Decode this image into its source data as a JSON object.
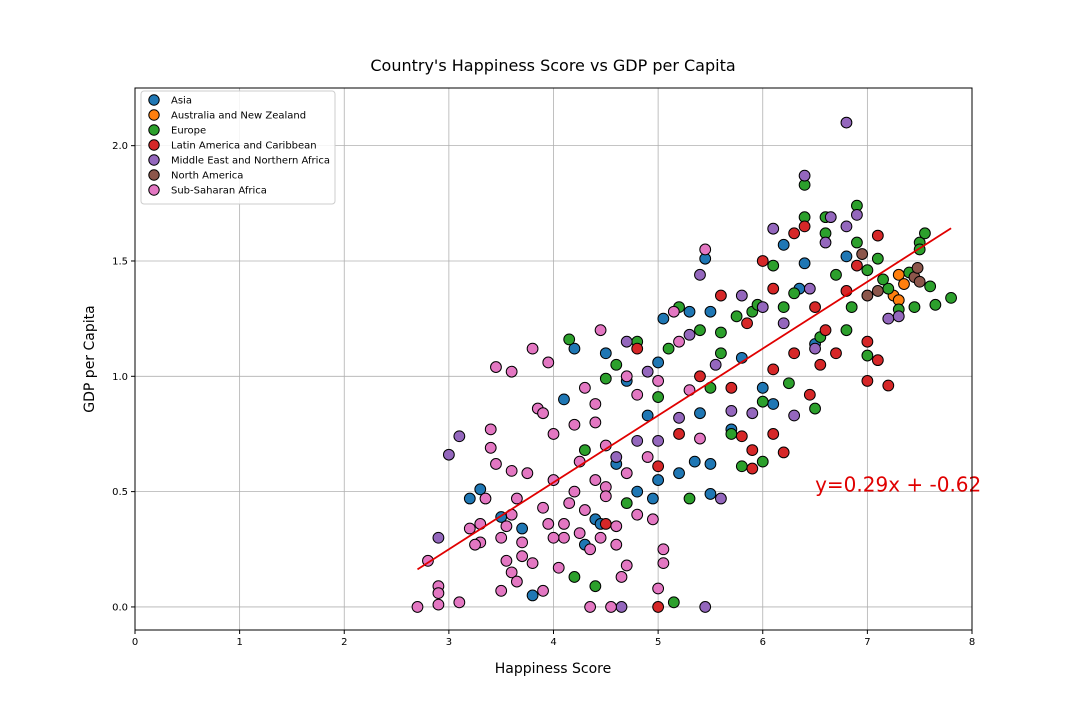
{
  "chart_data": {
    "type": "scatter",
    "title": "Country's Happiness Score vs GDP per Capita",
    "xlabel": "Happiness Score",
    "ylabel": "GDP per Capita",
    "xlim": [
      0,
      8
    ],
    "ylim": [
      -0.1,
      2.25
    ],
    "xticks": [
      "0",
      "1",
      "2",
      "3",
      "4",
      "5",
      "6",
      "7",
      "8"
    ],
    "yticks": [
      "0.0",
      "0.5",
      "1.0",
      "1.5",
      "2.0"
    ],
    "grid": true,
    "legend_position": "top-left",
    "series": [
      {
        "name": "Asia",
        "color": "#1f77b4",
        "points": [
          [
            3.3,
            0.51
          ],
          [
            3.2,
            0.47
          ],
          [
            3.5,
            0.39
          ],
          [
            3.7,
            0.34
          ],
          [
            3.8,
            0.05
          ],
          [
            4.1,
            0.9
          ],
          [
            4.2,
            1.12
          ],
          [
            4.3,
            0.27
          ],
          [
            4.4,
            0.38
          ],
          [
            4.5,
            1.1
          ],
          [
            4.6,
            0.62
          ],
          [
            4.7,
            0.98
          ],
          [
            4.8,
            0.5
          ],
          [
            4.9,
            0.83
          ],
          [
            5.0,
            1.06
          ],
          [
            5.0,
            0.55
          ],
          [
            5.05,
            1.25
          ],
          [
            5.2,
            0.58
          ],
          [
            5.3,
            1.28
          ],
          [
            5.4,
            0.84
          ],
          [
            5.45,
            1.51
          ],
          [
            5.5,
            0.62
          ],
          [
            5.5,
            1.28
          ],
          [
            5.5,
            0.49
          ],
          [
            5.7,
            0.77
          ],
          [
            5.8,
            1.08
          ],
          [
            6.0,
            0.95
          ],
          [
            6.1,
            0.88
          ],
          [
            6.2,
            1.57
          ],
          [
            6.35,
            1.38
          ],
          [
            6.4,
            1.49
          ],
          [
            6.5,
            1.14
          ],
          [
            6.8,
            1.52
          ],
          [
            4.45,
            0.36
          ],
          [
            4.95,
            0.47
          ],
          [
            5.35,
            0.63
          ]
        ]
      },
      {
        "name": "Australia and New Zealand",
        "color": "#ff7f0e",
        "points": [
          [
            7.3,
            1.44
          ],
          [
            7.35,
            1.4
          ],
          [
            7.25,
            1.35
          ],
          [
            7.3,
            1.33
          ]
        ]
      },
      {
        "name": "Europe",
        "color": "#2ca02c",
        "points": [
          [
            4.15,
            1.16
          ],
          [
            4.2,
            0.13
          ],
          [
            4.3,
            0.68
          ],
          [
            4.4,
            0.09
          ],
          [
            4.5,
            0.99
          ],
          [
            4.6,
            1.05
          ],
          [
            4.7,
            0.45
          ],
          [
            4.8,
            1.15
          ],
          [
            5.0,
            0.91
          ],
          [
            5.1,
            1.12
          ],
          [
            5.15,
            0.02
          ],
          [
            5.2,
            1.3
          ],
          [
            5.3,
            0.47
          ],
          [
            5.4,
            1.2
          ],
          [
            5.5,
            0.95
          ],
          [
            5.6,
            1.1
          ],
          [
            5.7,
            0.75
          ],
          [
            5.75,
            1.26
          ],
          [
            5.8,
            0.61
          ],
          [
            5.9,
            1.28
          ],
          [
            6.0,
            0.89
          ],
          [
            6.0,
            0.63
          ],
          [
            6.1,
            1.48
          ],
          [
            6.2,
            1.3
          ],
          [
            6.3,
            1.36
          ],
          [
            6.4,
            1.83
          ],
          [
            6.4,
            1.69
          ],
          [
            6.5,
            0.86
          ],
          [
            6.6,
            1.69
          ],
          [
            6.6,
            1.62
          ],
          [
            6.7,
            1.44
          ],
          [
            6.8,
            1.2
          ],
          [
            6.9,
            1.74
          ],
          [
            6.9,
            1.58
          ],
          [
            7.0,
            1.46
          ],
          [
            7.0,
            1.09
          ],
          [
            7.1,
            1.51
          ],
          [
            7.2,
            1.38
          ],
          [
            7.3,
            1.29
          ],
          [
            7.4,
            1.45
          ],
          [
            7.5,
            1.58
          ],
          [
            7.5,
            1.55
          ],
          [
            7.55,
            1.62
          ],
          [
            7.6,
            1.39
          ],
          [
            7.65,
            1.31
          ],
          [
            7.8,
            1.34
          ],
          [
            5.6,
            1.19
          ],
          [
            5.95,
            1.31
          ],
          [
            6.25,
            0.97
          ],
          [
            6.55,
            1.17
          ],
          [
            6.85,
            1.3
          ],
          [
            7.15,
            1.42
          ],
          [
            7.45,
            1.3
          ]
        ]
      },
      {
        "name": "Latin America and Caribbean",
        "color": "#d62728",
        "points": [
          [
            4.5,
            0.36
          ],
          [
            4.8,
            1.12
          ],
          [
            5.0,
            0.61
          ],
          [
            5.0,
            0.0
          ],
          [
            5.2,
            0.75
          ],
          [
            5.4,
            1.0
          ],
          [
            5.6,
            1.35
          ],
          [
            5.7,
            0.95
          ],
          [
            5.85,
            1.23
          ],
          [
            5.9,
            0.6
          ],
          [
            5.9,
            0.68
          ],
          [
            6.0,
            1.5
          ],
          [
            6.1,
            1.38
          ],
          [
            6.1,
            0.75
          ],
          [
            6.2,
            0.67
          ],
          [
            6.3,
            1.62
          ],
          [
            6.3,
            1.1
          ],
          [
            6.4,
            1.65
          ],
          [
            6.45,
            0.92
          ],
          [
            6.5,
            1.3
          ],
          [
            6.55,
            1.05
          ],
          [
            6.6,
            1.2
          ],
          [
            6.7,
            1.1
          ],
          [
            6.8,
            1.37
          ],
          [
            6.9,
            1.48
          ],
          [
            7.0,
            1.15
          ],
          [
            7.1,
            1.07
          ],
          [
            7.1,
            1.61
          ],
          [
            7.2,
            0.96
          ],
          [
            7.0,
            0.98
          ],
          [
            6.1,
            1.03
          ],
          [
            5.8,
            0.74
          ]
        ]
      },
      {
        "name": "Middle East and Northern Africa",
        "color": "#9467bd",
        "points": [
          [
            2.9,
            0.3
          ],
          [
            3.0,
            0.66
          ],
          [
            3.1,
            0.74
          ],
          [
            4.6,
            0.65
          ],
          [
            4.65,
            0.0
          ],
          [
            4.7,
            1.15
          ],
          [
            4.8,
            0.72
          ],
          [
            4.9,
            1.02
          ],
          [
            5.0,
            0.72
          ],
          [
            5.2,
            0.82
          ],
          [
            5.3,
            1.18
          ],
          [
            5.4,
            1.44
          ],
          [
            5.45,
            0.0
          ],
          [
            5.55,
            1.05
          ],
          [
            5.7,
            0.85
          ],
          [
            5.8,
            1.35
          ],
          [
            5.9,
            0.84
          ],
          [
            6.0,
            1.3
          ],
          [
            6.1,
            1.64
          ],
          [
            6.2,
            1.23
          ],
          [
            6.3,
            0.83
          ],
          [
            6.4,
            1.87
          ],
          [
            6.45,
            1.38
          ],
          [
            6.6,
            1.58
          ],
          [
            6.65,
            1.69
          ],
          [
            6.8,
            2.1
          ],
          [
            6.8,
            1.65
          ],
          [
            6.9,
            1.7
          ],
          [
            7.2,
            1.25
          ],
          [
            7.3,
            1.26
          ],
          [
            5.6,
            0.47
          ],
          [
            6.5,
            1.12
          ]
        ]
      },
      {
        "name": "North America",
        "color": "#8c564b",
        "points": [
          [
            6.95,
            1.53
          ],
          [
            7.0,
            1.35
          ],
          [
            7.1,
            1.37
          ],
          [
            7.45,
            1.43
          ],
          [
            7.5,
            1.41
          ],
          [
            7.48,
            1.47
          ]
        ]
      },
      {
        "name": "Sub-Saharan Africa",
        "color": "#e377c2",
        "points": [
          [
            2.7,
            0.0
          ],
          [
            2.8,
            0.2
          ],
          [
            2.9,
            0.09
          ],
          [
            2.9,
            0.06
          ],
          [
            2.9,
            0.01
          ],
          [
            3.1,
            0.02
          ],
          [
            3.2,
            0.34
          ],
          [
            3.3,
            0.28
          ],
          [
            3.4,
            0.77
          ],
          [
            3.4,
            0.69
          ],
          [
            3.45,
            0.62
          ],
          [
            3.45,
            1.04
          ],
          [
            3.5,
            0.07
          ],
          [
            3.55,
            0.35
          ],
          [
            3.6,
            1.02
          ],
          [
            3.6,
            0.59
          ],
          [
            3.65,
            0.47
          ],
          [
            3.7,
            0.28
          ],
          [
            3.75,
            0.58
          ],
          [
            3.8,
            1.12
          ],
          [
            3.85,
            0.86
          ],
          [
            3.9,
            0.84
          ],
          [
            3.9,
            0.07
          ],
          [
            3.95,
            1.06
          ],
          [
            4.0,
            0.75
          ],
          [
            4.0,
            0.55
          ],
          [
            4.05,
            0.17
          ],
          [
            4.1,
            0.3
          ],
          [
            4.2,
            0.79
          ],
          [
            4.25,
            0.63
          ],
          [
            4.3,
            0.95
          ],
          [
            4.35,
            0.0
          ],
          [
            4.4,
            0.88
          ],
          [
            4.45,
            1.2
          ],
          [
            4.5,
            0.52
          ],
          [
            4.55,
            0.0
          ],
          [
            4.6,
            0.27
          ],
          [
            4.65,
            0.13
          ],
          [
            4.7,
            0.18
          ],
          [
            4.8,
            0.4
          ],
          [
            4.9,
            0.65
          ],
          [
            4.95,
            0.38
          ],
          [
            5.0,
            0.08
          ],
          [
            5.05,
            0.25
          ],
          [
            5.05,
            0.19
          ],
          [
            5.15,
            1.28
          ],
          [
            5.2,
            1.15
          ],
          [
            5.3,
            0.94
          ],
          [
            5.4,
            0.73
          ],
          [
            5.45,
            1.55
          ],
          [
            3.35,
            0.47
          ],
          [
            3.6,
            0.4
          ],
          [
            3.7,
            0.22
          ],
          [
            3.8,
            0.19
          ],
          [
            3.9,
            0.43
          ],
          [
            3.95,
            0.36
          ],
          [
            4.0,
            0.3
          ],
          [
            4.1,
            0.36
          ],
          [
            4.15,
            0.45
          ],
          [
            4.2,
            0.5
          ],
          [
            4.25,
            0.32
          ],
          [
            4.3,
            0.42
          ],
          [
            4.35,
            0.25
          ],
          [
            4.4,
            0.55
          ],
          [
            4.45,
            0.3
          ],
          [
            4.5,
            0.48
          ],
          [
            4.6,
            0.35
          ],
          [
            4.7,
            0.58
          ],
          [
            4.4,
            0.8
          ],
          [
            4.5,
            0.7
          ],
          [
            4.7,
            1.0
          ],
          [
            4.8,
            0.92
          ],
          [
            5.0,
            0.98
          ],
          [
            3.5,
            0.3
          ],
          [
            3.55,
            0.2
          ],
          [
            3.6,
            0.15
          ],
          [
            3.65,
            0.11
          ],
          [
            3.3,
            0.36
          ],
          [
            3.25,
            0.27
          ]
        ]
      }
    ],
    "trendline": {
      "slope": 0.29,
      "intercept": -0.62,
      "x_range": [
        2.7,
        7.8
      ],
      "color": "#e00000",
      "label": "y=0.29x + -0.62",
      "label_x": 6.5,
      "label_y": 0.5
    }
  }
}
